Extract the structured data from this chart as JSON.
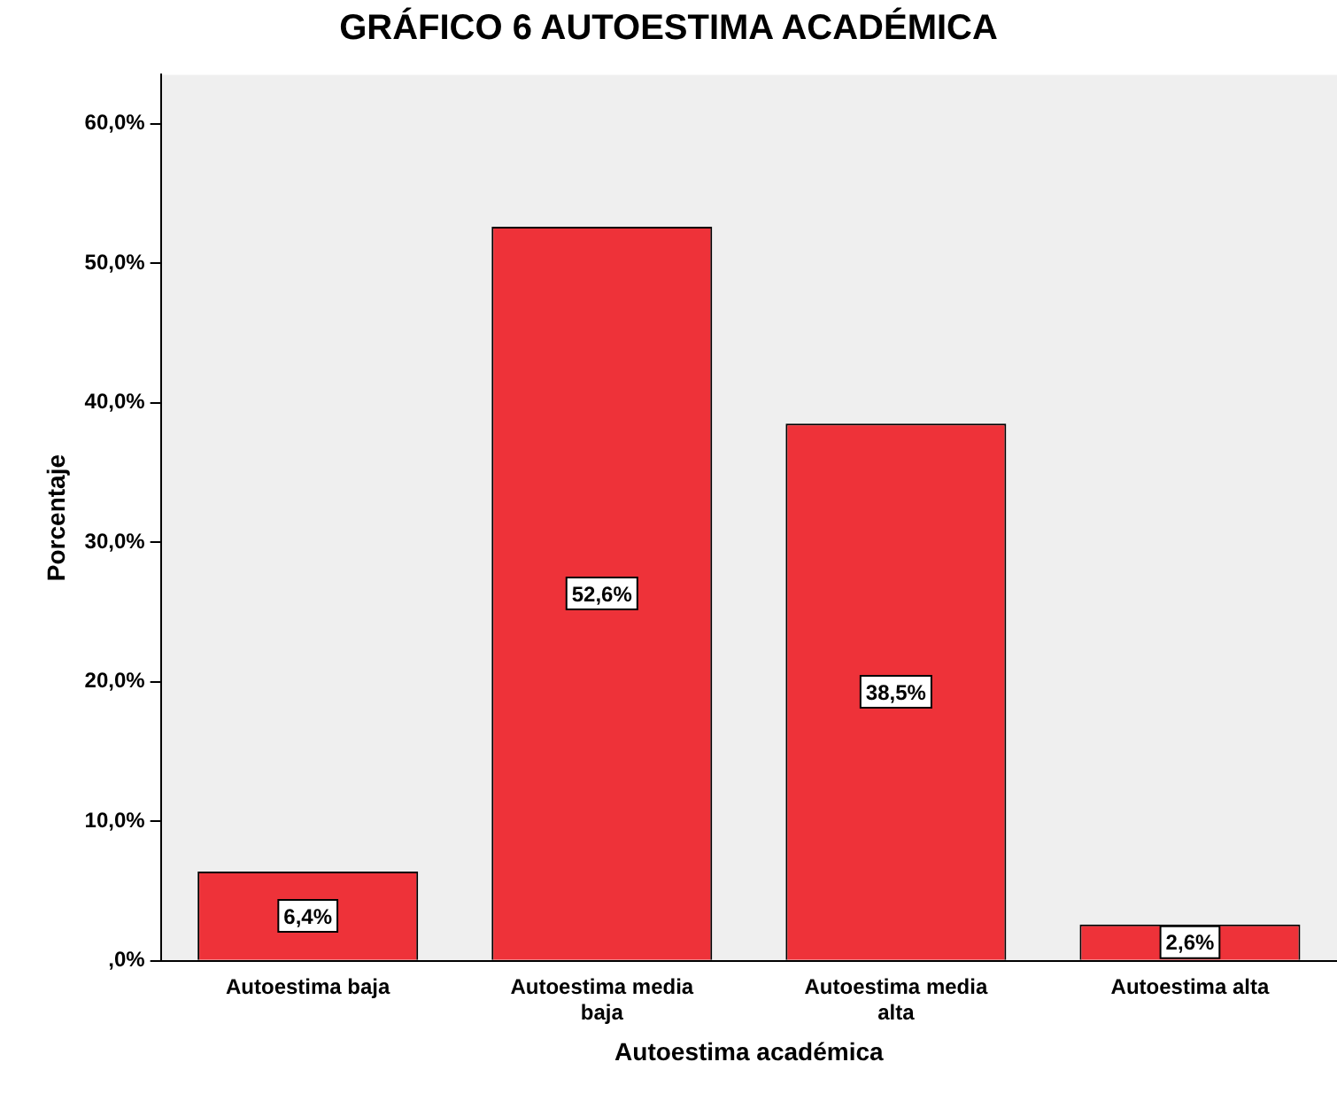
{
  "chart_data": {
    "type": "bar",
    "title": "GRÁFICO 6 AUTOESTIMA ACADÉMICA",
    "xlabel": "Autoestima académica",
    "ylabel": "Porcentaje",
    "categories": [
      "Autoestima baja",
      "Autoestima media baja",
      "Autoestima media alta",
      "Autoestima alta"
    ],
    "values": [
      6.4,
      52.6,
      38.5,
      2.6
    ],
    "color": "#ee3239",
    "value_labels": [
      "6,4%",
      "52,6%",
      "38,5%",
      "2,6%"
    ],
    "ylim": [
      0,
      63.5
    ],
    "yticks": [
      {
        "value": 0,
        "label": ",0%"
      },
      {
        "value": 10,
        "label": "10,0%"
      },
      {
        "value": 20,
        "label": "20,0%"
      },
      {
        "value": 30,
        "label": "30,0%"
      },
      {
        "value": 40,
        "label": "40,0%"
      },
      {
        "value": 50,
        "label": "50,0%"
      },
      {
        "value": 60,
        "label": "60,0%"
      }
    ],
    "grid": false,
    "legend": false
  }
}
